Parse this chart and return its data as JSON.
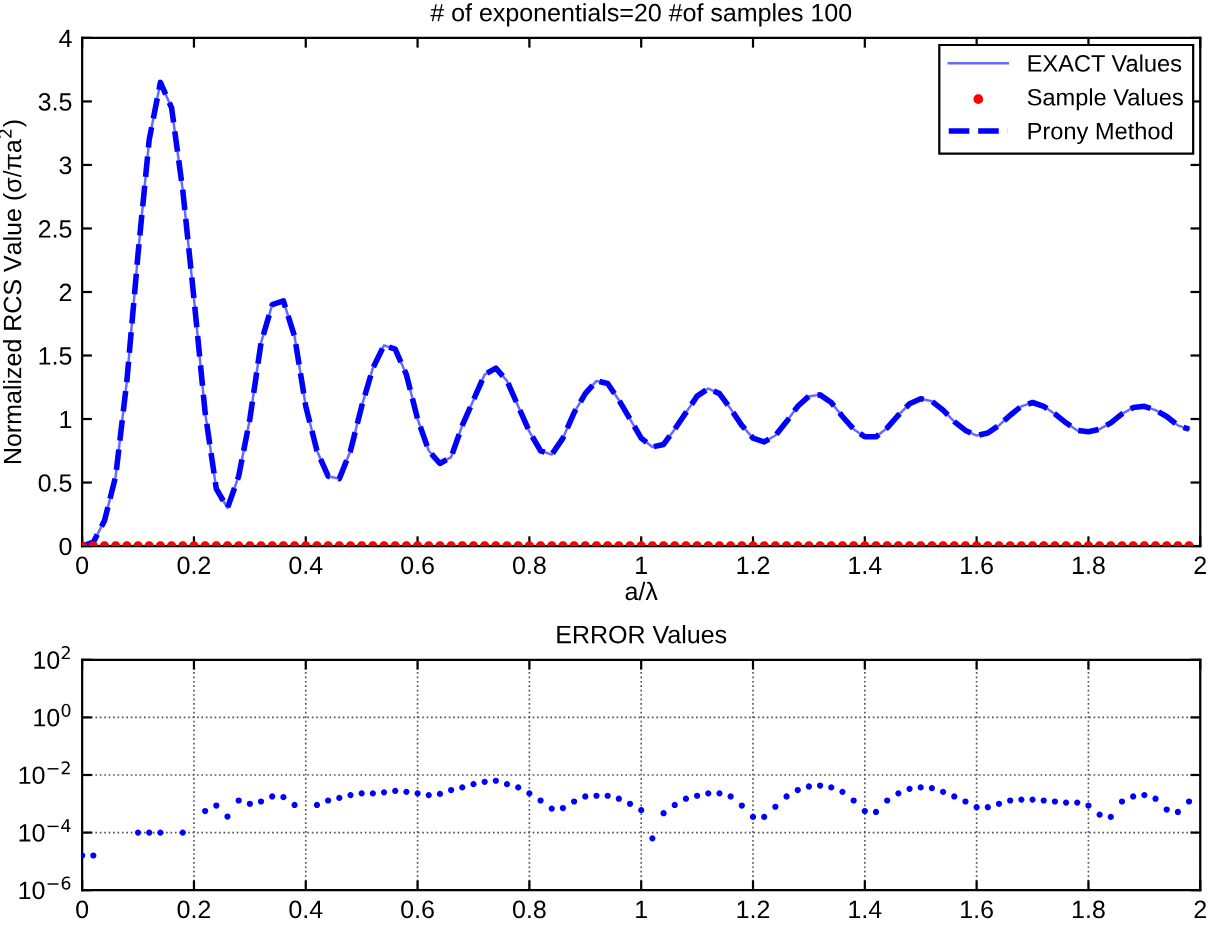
{
  "chart_data": [
    {
      "type": "line",
      "title": "# of exponentials=20 #of samples 100",
      "xlabel": "a/λ",
      "ylabel": "Normalized RCS Value (σ/πa$^{2}$)",
      "x": [
        0,
        0.02,
        0.04,
        0.06,
        0.08,
        0.1,
        0.12,
        0.14,
        0.16,
        0.18,
        0.2,
        0.22,
        0.24,
        0.26,
        0.28,
        0.3,
        0.32,
        0.34,
        0.36,
        0.38,
        0.4,
        0.42,
        0.44,
        0.46,
        0.48,
        0.5,
        0.52,
        0.54,
        0.56,
        0.58,
        0.6,
        0.62,
        0.64,
        0.66,
        0.68,
        0.7,
        0.72,
        0.74,
        0.76,
        0.78,
        0.8,
        0.82,
        0.84,
        0.86,
        0.88,
        0.9,
        0.92,
        0.94,
        0.96,
        0.98,
        1.0,
        1.02,
        1.04,
        1.06,
        1.08,
        1.1,
        1.12,
        1.14,
        1.16,
        1.18,
        1.2,
        1.22,
        1.24,
        1.26,
        1.28,
        1.3,
        1.32,
        1.34,
        1.36,
        1.38,
        1.4,
        1.42,
        1.44,
        1.46,
        1.48,
        1.5,
        1.52,
        1.54,
        1.56,
        1.58,
        1.6,
        1.62,
        1.64,
        1.66,
        1.68,
        1.7,
        1.72,
        1.74,
        1.76,
        1.78,
        1.8,
        1.82,
        1.84,
        1.86,
        1.88,
        1.9,
        1.92,
        1.94,
        1.96,
        1.98
      ],
      "series": [
        {
          "name": "EXACT Values",
          "type": "line",
          "color": "#6a6aff",
          "line_style": "solid",
          "values": [
            0,
            0.03,
            0.2,
            0.55,
            1.3,
            2.3,
            3.2,
            3.65,
            3.45,
            2.8,
            1.95,
            1.05,
            0.45,
            0.3,
            0.55,
            1.0,
            1.6,
            1.9,
            1.93,
            1.65,
            1.1,
            0.75,
            0.55,
            0.53,
            0.75,
            1.1,
            1.4,
            1.58,
            1.55,
            1.35,
            1.0,
            0.75,
            0.65,
            0.7,
            0.95,
            1.15,
            1.35,
            1.4,
            1.3,
            1.1,
            0.9,
            0.75,
            0.72,
            0.85,
            1.05,
            1.2,
            1.3,
            1.28,
            1.15,
            1.0,
            0.85,
            0.78,
            0.8,
            0.92,
            1.05,
            1.18,
            1.24,
            1.2,
            1.08,
            0.95,
            0.85,
            0.82,
            0.87,
            0.98,
            1.1,
            1.18,
            1.19,
            1.13,
            1.02,
            0.92,
            0.86,
            0.86,
            0.93,
            1.03,
            1.12,
            1.16,
            1.14,
            1.07,
            0.98,
            0.91,
            0.87,
            0.89,
            0.95,
            1.03,
            1.1,
            1.13,
            1.1,
            1.04,
            0.97,
            0.91,
            0.9,
            0.92,
            0.97,
            1.04,
            1.09,
            1.1,
            1.07,
            1.02,
            0.95,
            0.92
          ]
        },
        {
          "name": "Sample Values",
          "type": "scatter",
          "color": "#ff0000",
          "marker": "circle",
          "values": [
            0,
            0,
            0,
            0,
            0,
            0,
            0,
            0,
            0,
            0,
            0,
            0,
            0,
            0,
            0,
            0,
            0,
            0,
            0,
            0,
            0,
            0,
            0,
            0,
            0,
            0,
            0,
            0,
            0,
            0,
            0,
            0,
            0,
            0,
            0,
            0,
            0,
            0,
            0,
            0,
            0,
            0,
            0,
            0,
            0,
            0,
            0,
            0,
            0,
            0,
            0,
            0,
            0,
            0,
            0,
            0,
            0,
            0,
            0,
            0,
            0,
            0,
            0,
            0,
            0,
            0,
            0,
            0,
            0,
            0,
            0,
            0,
            0,
            0,
            0,
            0,
            0,
            0,
            0,
            0,
            0,
            0,
            0,
            0,
            0,
            0,
            0,
            0,
            0,
            0,
            0,
            0,
            0,
            0,
            0,
            0,
            0,
            0,
            0,
            0
          ]
        },
        {
          "name": "Prony Method",
          "type": "line",
          "color": "#0000ff",
          "line_style": "dashed",
          "values": [
            0,
            0.03,
            0.2,
            0.55,
            1.3,
            2.3,
            3.2,
            3.65,
            3.45,
            2.8,
            1.95,
            1.05,
            0.45,
            0.3,
            0.55,
            1.0,
            1.6,
            1.9,
            1.93,
            1.65,
            1.1,
            0.75,
            0.55,
            0.53,
            0.75,
            1.1,
            1.4,
            1.58,
            1.55,
            1.35,
            1.0,
            0.75,
            0.65,
            0.7,
            0.95,
            1.15,
            1.35,
            1.4,
            1.3,
            1.1,
            0.9,
            0.75,
            0.72,
            0.85,
            1.05,
            1.2,
            1.3,
            1.28,
            1.15,
            1.0,
            0.85,
            0.78,
            0.8,
            0.92,
            1.05,
            1.18,
            1.24,
            1.2,
            1.08,
            0.95,
            0.85,
            0.82,
            0.87,
            0.98,
            1.1,
            1.18,
            1.19,
            1.13,
            1.02,
            0.92,
            0.86,
            0.86,
            0.93,
            1.03,
            1.12,
            1.16,
            1.14,
            1.07,
            0.98,
            0.91,
            0.87,
            0.89,
            0.95,
            1.03,
            1.1,
            1.13,
            1.1,
            1.04,
            0.97,
            0.91,
            0.9,
            0.92,
            0.97,
            1.04,
            1.09,
            1.1,
            1.07,
            1.02,
            0.95,
            0.92
          ]
        }
      ],
      "xlim": [
        0,
        2
      ],
      "xticks": [
        0,
        0.2,
        0.4,
        0.6,
        0.8,
        1,
        1.2,
        1.4,
        1.6,
        1.8,
        2
      ],
      "ylim": [
        0,
        4
      ],
      "yticks": [
        0,
        0.5,
        1,
        1.5,
        2,
        2.5,
        3,
        3.5,
        4
      ],
      "legend": "top right"
    },
    {
      "type": "scatter",
      "title": "ERROR Values",
      "log": "y",
      "grid": true,
      "marker": "circle",
      "x": [
        0,
        0.02,
        0.04,
        0.06,
        0.08,
        0.1,
        0.12,
        0.14,
        0.16,
        0.18,
        0.2,
        0.22,
        0.24,
        0.26,
        0.28,
        0.3,
        0.32,
        0.34,
        0.36,
        0.38,
        0.4,
        0.42,
        0.44,
        0.46,
        0.48,
        0.5,
        0.52,
        0.54,
        0.56,
        0.58,
        0.6,
        0.62,
        0.64,
        0.66,
        0.68,
        0.7,
        0.72,
        0.74,
        0.76,
        0.78,
        0.8,
        0.82,
        0.84,
        0.86,
        0.88,
        0.9,
        0.92,
        0.94,
        0.96,
        0.98,
        1.0,
        1.02,
        1.04,
        1.06,
        1.08,
        1.1,
        1.12,
        1.14,
        1.16,
        1.18,
        1.2,
        1.22,
        1.24,
        1.26,
        1.28,
        1.3,
        1.32,
        1.34,
        1.36,
        1.38,
        1.4,
        1.42,
        1.44,
        1.46,
        1.48,
        1.5,
        1.52,
        1.54,
        1.56,
        1.58,
        1.6,
        1.62,
        1.64,
        1.66,
        1.68,
        1.7,
        1.72,
        1.74,
        1.76,
        1.78,
        1.8,
        1.82,
        1.84,
        1.86,
        1.88,
        1.9,
        1.92,
        1.94,
        1.96,
        1.98
      ],
      "series": [
        {
          "color": "#0000ff",
          "values": [
            1.6e-05,
            1.6e-05,
            null,
            null,
            null,
            0.0001,
            0.0001,
            0.0001,
            null,
            0.0001,
            null,
            0.00056,
            0.00087,
            0.00036,
            0.0013,
            0.001,
            0.0012,
            0.0018,
            0.0017,
            0.00091,
            null,
            0.00091,
            0.0013,
            0.0016,
            0.002,
            0.0023,
            0.0023,
            0.0025,
            0.0028,
            0.0026,
            0.0023,
            0.002,
            0.0022,
            0.003,
            0.0037,
            0.0048,
            0.0058,
            0.0063,
            0.0048,
            0.0037,
            0.0023,
            0.0013,
            0.00068,
            0.00071,
            0.0012,
            0.0018,
            0.0019,
            0.0019,
            0.0015,
            0.001,
            0.0006,
            6.3e-05,
            0.00047,
            0.00091,
            0.0015,
            0.0019,
            0.0023,
            0.0023,
            0.0018,
            0.00087,
            0.00035,
            0.00035,
            0.00079,
            0.0018,
            0.003,
            0.004,
            0.0043,
            0.0037,
            0.0026,
            0.0013,
            0.00056,
            0.00052,
            0.0013,
            0.0023,
            0.0033,
            0.0037,
            0.0035,
            0.0026,
            0.0018,
            0.0012,
            0.00076,
            0.00076,
            0.001,
            0.0013,
            0.0014,
            0.0014,
            0.0013,
            0.0012,
            0.0011,
            0.0011,
            0.00087,
            0.00042,
            0.00035,
            0.0012,
            0.0018,
            0.002,
            0.0015,
            0.00063,
            0.00052,
            0.0012
          ]
        }
      ],
      "xlim": [
        0,
        2
      ],
      "xticks": [
        0,
        0.2,
        0.4,
        0.6,
        0.8,
        1,
        1.2,
        1.4,
        1.6,
        1.8,
        2
      ],
      "ylim": [
        1e-06,
        100
      ],
      "yticks": [
        {
          "value": 1e-06,
          "label": "10$^{−6}$"
        },
        {
          "value": 0.0001,
          "label": "10$^{−4}$"
        },
        {
          "value": 0.01,
          "label": "10$^{−2}$"
        },
        {
          "value": 1,
          "label": "10$^{0}$"
        },
        {
          "value": 100,
          "label": "10$^{2}$"
        }
      ]
    }
  ]
}
